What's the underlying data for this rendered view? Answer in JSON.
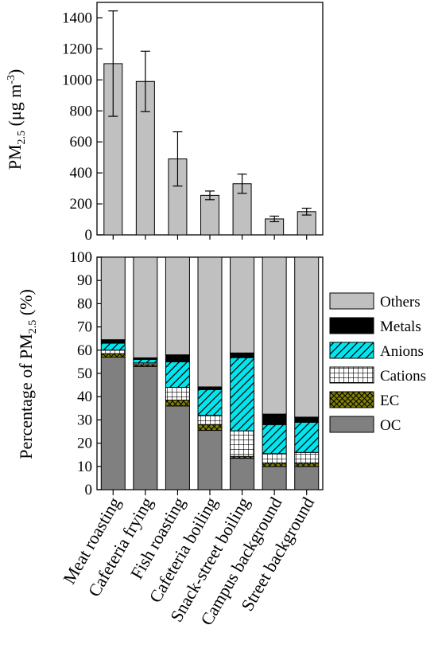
{
  "chart_data": [
    {
      "type": "bar",
      "categories": [
        "Meat roasting",
        "Cafeteria frying",
        "Fish roasting",
        "Cafeteria boiling",
        "Snack-street boiling",
        "Campus background",
        "Street background"
      ],
      "values": [
        1105,
        990,
        490,
        255,
        330,
        103,
        150
      ],
      "error": [
        340,
        195,
        175,
        28,
        62,
        18,
        22
      ],
      "ylabel": {
        "main": "PM",
        "sub": "2.5",
        "unit_open": " (μg m",
        "unit_sup": "-3",
        "unit_close": ")"
      },
      "ylim": [
        0,
        1500
      ],
      "yticks": [
        "0",
        "200",
        "400",
        "600",
        "800",
        "1000",
        "1200",
        "1400"
      ],
      "colors": {
        "bar": "#c0c0c0"
      }
    },
    {
      "type": "bar",
      "stacked": true,
      "categories": [
        "Meat roasting",
        "Cafeteria frying",
        "Fish roasting",
        "Cafeteria boiling",
        "Snack-street boiling",
        "Campus background",
        "Street background"
      ],
      "series": [
        {
          "name": "OC",
          "values": [
            57,
            53,
            36,
            25.5,
            13.5,
            10,
            10
          ],
          "color": "#808080",
          "pattern": "solid"
        },
        {
          "name": "EC",
          "values": [
            1.5,
            0.8,
            2.5,
            2.5,
            0.8,
            1.5,
            1.5
          ],
          "color": "#808000",
          "pattern": "crosshatch"
        },
        {
          "name": "Cations",
          "values": [
            1.5,
            0.7,
            5.5,
            4,
            11,
            4,
            4.5
          ],
          "color": "#ffffff",
          "pattern": "grid"
        },
        {
          "name": "Anions",
          "values": [
            3,
            1.5,
            11,
            11,
            31.5,
            12.5,
            13
          ],
          "color": "#00e5ee",
          "pattern": "diagonal"
        },
        {
          "name": "Metals",
          "values": [
            1.5,
            0.7,
            3,
            1.2,
            2,
            4.5,
            2.2
          ],
          "color": "#000000",
          "pattern": "solid"
        },
        {
          "name": "Others",
          "values": [
            35.5,
            43.3,
            42,
            55.8,
            41.2,
            67.5,
            68.8
          ],
          "color": "#c0c0c0",
          "pattern": "solid"
        }
      ],
      "ylabel": {
        "main": "Percentage of PM",
        "sub": "2.5",
        "unit_open": " (%)",
        "unit_sup": "",
        "unit_close": ""
      },
      "ylim": [
        0,
        100
      ],
      "yticks": [
        "0",
        "10",
        "20",
        "30",
        "40",
        "50",
        "60",
        "70",
        "80",
        "90",
        "100"
      ],
      "legend_order": [
        "Others",
        "Metals",
        "Anions",
        "Cations",
        "EC",
        "OC"
      ],
      "legend_position": "right"
    }
  ]
}
